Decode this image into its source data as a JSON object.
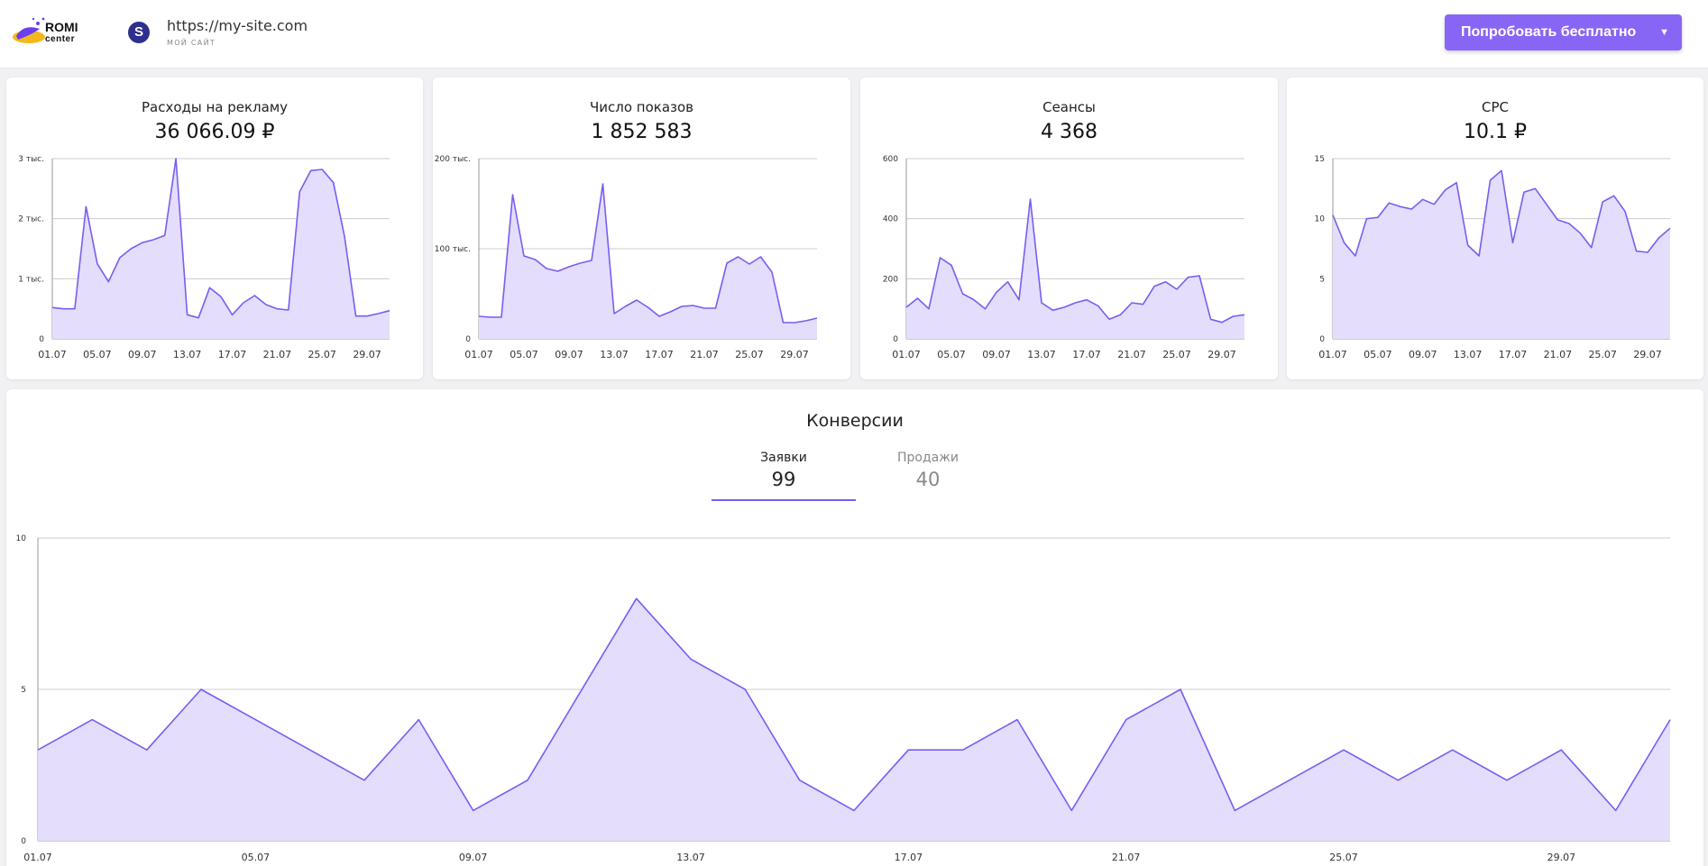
{
  "header": {
    "logo_word": "ROMI",
    "logo_sub": "center",
    "site_initial": "S",
    "site_url": "https://my-site.com",
    "site_caption": "МОЙ САЙТ",
    "try_button": "Попробовать бесплатно",
    "try_arrow": "▼"
  },
  "colors": {
    "accent": "#7b5cf0",
    "fill": "#e4ddfc",
    "button": "#8866f5",
    "grid": "#cccccc"
  },
  "kpis": [
    {
      "title": "Расходы на рекламу",
      "value": "36 066.09 ₽",
      "chart_data": {
        "type": "area",
        "x": [
          "01.07",
          "02.07",
          "03.07",
          "04.07",
          "05.07",
          "06.07",
          "07.07",
          "08.07",
          "09.07",
          "10.07",
          "11.07",
          "12.07",
          "13.07",
          "14.07",
          "15.07",
          "16.07",
          "17.07",
          "18.07",
          "19.07",
          "20.07",
          "21.07",
          "22.07",
          "23.07",
          "24.07",
          "25.07",
          "26.07",
          "27.07",
          "28.07",
          "29.07",
          "30.07",
          "31.07"
        ],
        "values": [
          520,
          500,
          500,
          2200,
          1250,
          950,
          1350,
          1500,
          1600,
          1650,
          1720,
          3000,
          400,
          350,
          850,
          700,
          400,
          600,
          720,
          570,
          500,
          480,
          2450,
          2800,
          2820,
          2600,
          1700,
          380,
          380,
          420,
          470
        ],
        "ylim": [
          0,
          3000
        ],
        "yticks": [
          {
            "v": 0,
            "label": "0"
          },
          {
            "v": 1000,
            "label": "1 тыс."
          },
          {
            "v": 2000,
            "label": "2 тыс."
          },
          {
            "v": 3000,
            "label": "3 тыс."
          }
        ],
        "xtick_labels": [
          "01.07",
          "05.07",
          "09.07",
          "13.07",
          "17.07",
          "21.07",
          "25.07",
          "29.07"
        ],
        "grid": true
      }
    },
    {
      "title": "Число показов",
      "value": "1 852 583",
      "chart_data": {
        "type": "area",
        "x": [
          "01.07",
          "02.07",
          "03.07",
          "04.07",
          "05.07",
          "06.07",
          "07.07",
          "08.07",
          "09.07",
          "10.07",
          "11.07",
          "12.07",
          "13.07",
          "14.07",
          "15.07",
          "16.07",
          "17.07",
          "18.07",
          "19.07",
          "20.07",
          "21.07",
          "22.07",
          "23.07",
          "24.07",
          "25.07",
          "26.07",
          "27.07",
          "28.07",
          "29.07",
          "30.07",
          "31.07"
        ],
        "values": [
          25000,
          24000,
          24000,
          160000,
          92000,
          88000,
          78000,
          75000,
          80000,
          84000,
          87000,
          172000,
          28000,
          36000,
          43000,
          35000,
          25000,
          30000,
          36000,
          37000,
          34000,
          34000,
          84000,
          91000,
          83000,
          91000,
          74000,
          18000,
          18000,
          20000,
          23000
        ],
        "ylim": [
          0,
          200000
        ],
        "yticks": [
          {
            "v": 0,
            "label": "0"
          },
          {
            "v": 100000,
            "label": "100 тыс."
          },
          {
            "v": 200000,
            "label": "200 тыс."
          }
        ],
        "xtick_labels": [
          "01.07",
          "05.07",
          "09.07",
          "13.07",
          "17.07",
          "21.07",
          "25.07",
          "29.07"
        ],
        "grid": true
      }
    },
    {
      "title": "Сеансы",
      "value": "4 368",
      "chart_data": {
        "type": "area",
        "x": [
          "01.07",
          "02.07",
          "03.07",
          "04.07",
          "05.07",
          "06.07",
          "07.07",
          "08.07",
          "09.07",
          "10.07",
          "11.07",
          "12.07",
          "13.07",
          "14.07",
          "15.07",
          "16.07",
          "17.07",
          "18.07",
          "19.07",
          "20.07",
          "21.07",
          "22.07",
          "23.07",
          "24.07",
          "25.07",
          "26.07",
          "27.07",
          "28.07",
          "29.07",
          "30.07",
          "31.07"
        ],
        "values": [
          105,
          135,
          100,
          270,
          245,
          150,
          130,
          100,
          155,
          190,
          130,
          465,
          120,
          95,
          105,
          120,
          130,
          110,
          65,
          80,
          120,
          115,
          175,
          190,
          165,
          205,
          210,
          65,
          55,
          75,
          80
        ],
        "ylim": [
          0,
          600
        ],
        "yticks": [
          {
            "v": 0,
            "label": "0"
          },
          {
            "v": 200,
            "label": "200"
          },
          {
            "v": 400,
            "label": "400"
          },
          {
            "v": 600,
            "label": "600"
          }
        ],
        "xtick_labels": [
          "01.07",
          "05.07",
          "09.07",
          "13.07",
          "17.07",
          "21.07",
          "25.07",
          "29.07"
        ],
        "grid": true
      }
    },
    {
      "title": "CPC",
      "value": "10.1 ₽",
      "chart_data": {
        "type": "area",
        "x": [
          "01.07",
          "02.07",
          "03.07",
          "04.07",
          "05.07",
          "06.07",
          "07.07",
          "08.07",
          "09.07",
          "10.07",
          "11.07",
          "12.07",
          "13.07",
          "14.07",
          "15.07",
          "16.07",
          "17.07",
          "18.07",
          "19.07",
          "20.07",
          "21.07",
          "22.07",
          "23.07",
          "24.07",
          "25.07",
          "26.07",
          "27.07",
          "28.07",
          "29.07",
          "30.07",
          "31.07"
        ],
        "values": [
          10.3,
          8.0,
          6.9,
          10.0,
          10.1,
          11.3,
          11.0,
          10.8,
          11.6,
          11.2,
          12.4,
          13.0,
          7.8,
          6.9,
          13.2,
          14.0,
          8.0,
          12.2,
          12.5,
          11.2,
          9.9,
          9.6,
          8.8,
          7.6,
          11.4,
          11.9,
          10.6,
          7.3,
          7.2,
          8.4,
          9.2
        ],
        "ylim": [
          0,
          15
        ],
        "yticks": [
          {
            "v": 0,
            "label": "0"
          },
          {
            "v": 5,
            "label": "5"
          },
          {
            "v": 10,
            "label": "10"
          },
          {
            "v": 15,
            "label": "15"
          }
        ],
        "xtick_labels": [
          "01.07",
          "05.07",
          "09.07",
          "13.07",
          "17.07",
          "21.07",
          "25.07",
          "29.07"
        ],
        "grid": true
      }
    }
  ],
  "conversions": {
    "title": "Конверсии",
    "tabs": [
      {
        "label": "Заявки",
        "value": "99"
      },
      {
        "label": "Продажи",
        "value": "40"
      }
    ],
    "chart_data": {
      "type": "area",
      "x": [
        "01.07",
        "02.07",
        "03.07",
        "04.07",
        "05.07",
        "06.07",
        "07.07",
        "08.07",
        "09.07",
        "10.07",
        "11.07",
        "12.07",
        "13.07",
        "14.07",
        "15.07",
        "16.07",
        "17.07",
        "18.07",
        "19.07",
        "20.07",
        "21.07",
        "22.07",
        "23.07",
        "24.07",
        "25.07",
        "26.07",
        "27.07",
        "28.07",
        "29.07",
        "30.07",
        "31.07"
      ],
      "values": [
        3,
        4,
        3,
        5,
        4,
        3,
        2,
        4,
        1,
        2,
        5,
        8,
        6,
        5,
        2,
        1,
        3,
        3,
        4,
        1,
        4,
        5,
        1,
        2,
        3,
        2,
        3,
        2,
        3,
        1,
        4
      ],
      "ylim": [
        0,
        10
      ],
      "yticks": [
        {
          "v": 0,
          "label": "0"
        },
        {
          "v": 5,
          "label": "5"
        },
        {
          "v": 10,
          "label": "10"
        }
      ],
      "xtick_labels": [
        "01.07",
        "05.07",
        "09.07",
        "13.07",
        "17.07",
        "21.07",
        "25.07",
        "29.07"
      ],
      "grid": true
    }
  }
}
